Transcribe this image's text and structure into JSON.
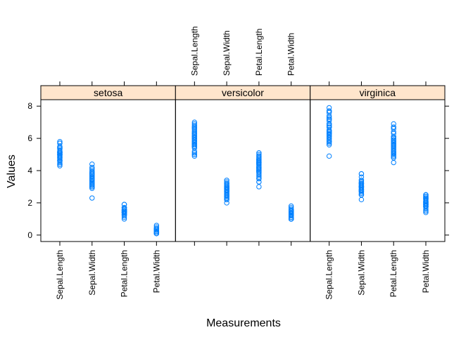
{
  "chart_data": {
    "type": "scatter",
    "xlabel": "Measurements",
    "ylabel": "Values",
    "ylim": [
      -0.4,
      8.4
    ],
    "y_ticks": [
      0,
      2,
      4,
      6,
      8
    ],
    "categories": [
      "Sepal.Length",
      "Sepal.Width",
      "Petal.Length",
      "Petal.Width"
    ],
    "point_color": "#0080ff",
    "strip_color": "#ffe5cc",
    "panels": [
      {
        "name": "setosa",
        "values": [
          [
            4.3,
            4.4,
            4.4,
            4.4,
            4.5,
            4.6,
            4.6,
            4.6,
            4.6,
            4.7,
            4.7,
            4.8,
            4.8,
            4.8,
            4.8,
            4.8,
            4.9,
            4.9,
            4.9,
            4.9,
            5.0,
            5.0,
            5.0,
            5.0,
            5.0,
            5.0,
            5.0,
            5.0,
            5.1,
            5.1,
            5.1,
            5.1,
            5.1,
            5.1,
            5.1,
            5.1,
            5.2,
            5.2,
            5.2,
            5.3,
            5.4,
            5.4,
            5.4,
            5.4,
            5.4,
            5.5,
            5.5,
            5.7,
            5.7,
            5.8
          ],
          [
            2.3,
            2.9,
            3.0,
            3.0,
            3.0,
            3.0,
            3.0,
            3.0,
            3.1,
            3.1,
            3.1,
            3.1,
            3.2,
            3.2,
            3.2,
            3.2,
            3.2,
            3.3,
            3.3,
            3.4,
            3.4,
            3.4,
            3.4,
            3.4,
            3.4,
            3.4,
            3.4,
            3.4,
            3.5,
            3.5,
            3.5,
            3.5,
            3.5,
            3.5,
            3.6,
            3.6,
            3.7,
            3.7,
            3.7,
            3.8,
            3.8,
            3.8,
            3.8,
            3.9,
            3.9,
            4.0,
            4.1,
            4.2,
            4.4,
            3.6
          ],
          [
            1.0,
            1.1,
            1.2,
            1.2,
            1.3,
            1.3,
            1.3,
            1.3,
            1.3,
            1.3,
            1.3,
            1.4,
            1.4,
            1.4,
            1.4,
            1.4,
            1.4,
            1.4,
            1.4,
            1.4,
            1.4,
            1.4,
            1.4,
            1.4,
            1.5,
            1.5,
            1.5,
            1.5,
            1.5,
            1.5,
            1.5,
            1.5,
            1.5,
            1.5,
            1.5,
            1.5,
            1.5,
            1.6,
            1.6,
            1.6,
            1.6,
            1.6,
            1.6,
            1.6,
            1.7,
            1.7,
            1.7,
            1.7,
            1.9,
            1.9
          ],
          [
            0.1,
            0.1,
            0.1,
            0.1,
            0.1,
            0.2,
            0.2,
            0.2,
            0.2,
            0.2,
            0.2,
            0.2,
            0.2,
            0.2,
            0.2,
            0.2,
            0.2,
            0.2,
            0.2,
            0.2,
            0.2,
            0.2,
            0.2,
            0.2,
            0.2,
            0.2,
            0.2,
            0.2,
            0.2,
            0.2,
            0.2,
            0.2,
            0.2,
            0.2,
            0.3,
            0.3,
            0.3,
            0.3,
            0.3,
            0.3,
            0.3,
            0.4,
            0.4,
            0.4,
            0.4,
            0.4,
            0.4,
            0.4,
            0.5,
            0.6
          ]
        ]
      },
      {
        "name": "versicolor",
        "values": [
          [
            4.9,
            5.0,
            5.0,
            5.1,
            5.2,
            5.4,
            5.5,
            5.5,
            5.5,
            5.5,
            5.5,
            5.6,
            5.6,
            5.6,
            5.6,
            5.6,
            5.7,
            5.7,
            5.7,
            5.7,
            5.7,
            5.8,
            5.8,
            5.8,
            5.9,
            5.9,
            6.0,
            6.0,
            6.0,
            6.0,
            6.1,
            6.1,
            6.1,
            6.1,
            6.2,
            6.2,
            6.3,
            6.3,
            6.3,
            6.4,
            6.4,
            6.5,
            6.6,
            6.6,
            6.7,
            6.7,
            6.7,
            6.8,
            6.9,
            7.0
          ],
          [
            2.0,
            2.2,
            2.2,
            2.3,
            2.3,
            2.3,
            2.4,
            2.4,
            2.4,
            2.5,
            2.5,
            2.5,
            2.5,
            2.6,
            2.6,
            2.6,
            2.7,
            2.7,
            2.7,
            2.7,
            2.7,
            2.8,
            2.8,
            2.8,
            2.8,
            2.8,
            2.8,
            2.9,
            2.9,
            2.9,
            2.9,
            2.9,
            2.9,
            2.9,
            3.0,
            3.0,
            3.0,
            3.0,
            3.0,
            3.0,
            3.0,
            3.0,
            3.1,
            3.1,
            3.1,
            3.2,
            3.2,
            3.2,
            3.3,
            3.4
          ],
          [
            3.0,
            3.3,
            3.3,
            3.5,
            3.5,
            3.6,
            3.7,
            3.8,
            3.9,
            3.9,
            3.9,
            4.0,
            4.0,
            4.0,
            4.0,
            4.0,
            4.1,
            4.1,
            4.1,
            4.2,
            4.2,
            4.2,
            4.2,
            4.3,
            4.3,
            4.4,
            4.4,
            4.4,
            4.4,
            4.5,
            4.5,
            4.5,
            4.5,
            4.5,
            4.5,
            4.5,
            4.6,
            4.6,
            4.6,
            4.7,
            4.7,
            4.7,
            4.7,
            4.7,
            4.8,
            4.8,
            4.9,
            4.9,
            5.0,
            5.1
          ],
          [
            1.0,
            1.0,
            1.0,
            1.0,
            1.0,
            1.0,
            1.0,
            1.1,
            1.1,
            1.1,
            1.2,
            1.2,
            1.2,
            1.2,
            1.2,
            1.3,
            1.3,
            1.3,
            1.3,
            1.3,
            1.3,
            1.3,
            1.3,
            1.3,
            1.3,
            1.3,
            1.3,
            1.3,
            1.4,
            1.4,
            1.4,
            1.4,
            1.4,
            1.4,
            1.4,
            1.5,
            1.5,
            1.5,
            1.5,
            1.5,
            1.5,
            1.5,
            1.5,
            1.5,
            1.5,
            1.6,
            1.6,
            1.6,
            1.7,
            1.8
          ]
        ]
      },
      {
        "name": "virginica",
        "values": [
          [
            4.9,
            5.6,
            5.7,
            5.8,
            5.8,
            5.8,
            5.9,
            6.0,
            6.0,
            6.1,
            6.1,
            6.2,
            6.2,
            6.3,
            6.3,
            6.3,
            6.3,
            6.3,
            6.3,
            6.4,
            6.4,
            6.4,
            6.4,
            6.4,
            6.5,
            6.5,
            6.5,
            6.5,
            6.7,
            6.7,
            6.7,
            6.7,
            6.7,
            6.8,
            6.8,
            6.9,
            6.9,
            6.9,
            7.1,
            7.2,
            7.2,
            7.2,
            7.3,
            7.4,
            7.6,
            7.7,
            7.7,
            7.7,
            7.7,
            7.9
          ],
          [
            2.2,
            2.5,
            2.5,
            2.5,
            2.5,
            2.6,
            2.6,
            2.7,
            2.7,
            2.7,
            2.7,
            2.8,
            2.8,
            2.8,
            2.8,
            2.8,
            2.8,
            2.8,
            2.8,
            2.9,
            2.9,
            3.0,
            3.0,
            3.0,
            3.0,
            3.0,
            3.0,
            3.0,
            3.0,
            3.0,
            3.0,
            3.0,
            3.0,
            3.1,
            3.1,
            3.1,
            3.1,
            3.2,
            3.2,
            3.2,
            3.2,
            3.3,
            3.3,
            3.3,
            3.4,
            3.4,
            3.6,
            3.8,
            3.8,
            3.2
          ],
          [
            4.5,
            4.8,
            4.8,
            4.9,
            4.9,
            5.0,
            5.0,
            5.0,
            5.1,
            5.1,
            5.1,
            5.1,
            5.1,
            5.1,
            5.1,
            5.2,
            5.2,
            5.3,
            5.3,
            5.4,
            5.4,
            5.5,
            5.5,
            5.5,
            5.6,
            5.6,
            5.6,
            5.6,
            5.6,
            5.6,
            5.7,
            5.7,
            5.7,
            5.8,
            5.8,
            5.8,
            5.9,
            5.9,
            6.0,
            6.0,
            6.1,
            6.1,
            6.1,
            6.3,
            6.4,
            6.6,
            6.7,
            6.7,
            6.9,
            5.7
          ],
          [
            1.4,
            1.5,
            1.5,
            1.6,
            1.7,
            1.8,
            1.8,
            1.8,
            1.8,
            1.8,
            1.8,
            1.8,
            1.8,
            1.8,
            1.8,
            1.8,
            1.9,
            1.9,
            1.9,
            1.9,
            1.9,
            2.0,
            2.0,
            2.0,
            2.0,
            2.0,
            2.0,
            2.1,
            2.1,
            2.1,
            2.1,
            2.1,
            2.1,
            2.2,
            2.2,
            2.2,
            2.3,
            2.3,
            2.3,
            2.3,
            2.3,
            2.3,
            2.3,
            2.3,
            2.4,
            2.4,
            2.4,
            2.5,
            2.5,
            2.5
          ]
        ]
      }
    ]
  }
}
